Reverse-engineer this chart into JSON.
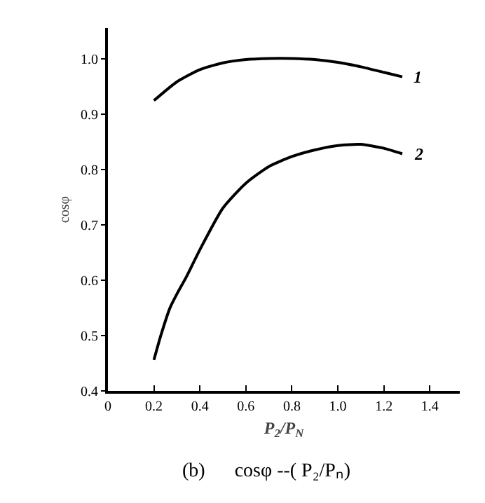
{
  "chart_data": {
    "type": "line",
    "xlabel": "P$_{2}$/P$_{N}$",
    "ylabel": "cosφ",
    "annotations": [
      "(b)      cosφ --( P₂/Pₙ)"
    ],
    "series": [
      {
        "name": "1",
        "color": "#000000",
        "x": [
          0.2,
          0.3,
          0.4,
          0.5,
          0.6,
          0.7,
          0.8,
          0.9,
          1.0,
          1.1,
          1.2,
          1.28
        ],
        "values": [
          0.924,
          0.958,
          0.98,
          0.992,
          0.998,
          1.0,
          1.0,
          0.998,
          0.993,
          0.985,
          0.975,
          0.967
        ]
      },
      {
        "name": "2",
        "color": "#000000",
        "x": [
          0.2,
          0.23,
          0.27,
          0.3,
          0.34,
          0.4,
          0.5,
          0.6,
          0.7,
          0.8,
          0.9,
          1.0,
          1.1,
          1.2,
          1.28
        ],
        "values": [
          0.456,
          0.5,
          0.55,
          0.575,
          0.605,
          0.655,
          0.73,
          0.775,
          0.805,
          0.823,
          0.835,
          0.843,
          0.845,
          0.838,
          0.828
        ]
      }
    ],
    "xlim": [
      0,
      1.53
    ],
    "ylim": [
      0.4,
      1.055
    ],
    "xticks": [
      0,
      0.2,
      0.4,
      0.6,
      0.8,
      {
        "value": 1,
        "label": "1.0"
      },
      1.2,
      1.4
    ],
    "yticks": [
      0.4,
      0.5,
      0.6,
      0.7,
      0.8,
      0.9,
      {
        "value": 1,
        "label": "1.0"
      }
    ],
    "grid": false,
    "legend": false,
    "marker": "none",
    "line_style": "solid"
  }
}
